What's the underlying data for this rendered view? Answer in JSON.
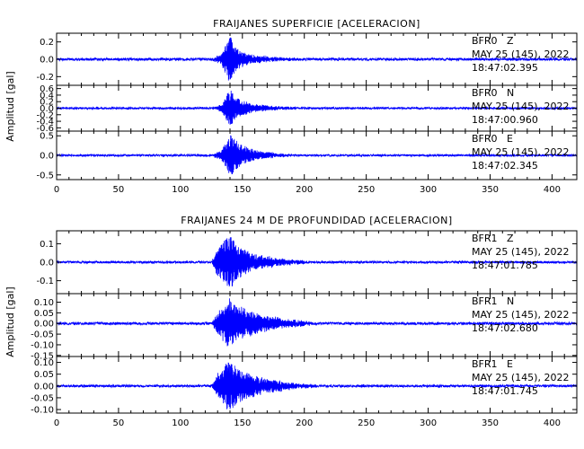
{
  "chart_data": [
    {
      "type": "line",
      "title": "FRAIJANES SUPERFICIE [ACELERACION]",
      "ylabel": "Amplitud [gal]",
      "xlim": [
        0,
        420
      ],
      "x_ticks": [
        "0",
        "50",
        "100",
        "150",
        "200",
        "250",
        "300",
        "350",
        "400"
      ],
      "color": "#0000ff",
      "series": [
        {
          "name": "BFR0 Z",
          "station": "BFR0   Z",
          "date": "MAY 25 (145), 2022",
          "time": "18:47:02.395",
          "ylim": [
            -0.3,
            0.3
          ],
          "y_ticks": [
            {
              "v": -0.2,
              "t": "-0.2"
            },
            {
              "v": 0.0,
              "t": "0.0"
            },
            {
              "v": 0.2,
              "t": "0.2"
            }
          ],
          "noise": 0.015,
          "envelope": [
            [
              0,
              0
            ],
            [
              125,
              0
            ],
            [
              133,
              0.05
            ],
            [
              140,
              0.28
            ],
            [
              145,
              0.12
            ],
            [
              155,
              0.05
            ],
            [
              175,
              0.02
            ],
            [
              195,
              0
            ]
          ],
          "seed": 11
        },
        {
          "name": "BFR0 N",
          "station": "BFR0   N",
          "date": "MAY 25 (145), 2022",
          "time": "18:47:00.960",
          "ylim": [
            -0.7,
            0.7
          ],
          "y_ticks": [
            {
              "v": -0.6,
              "t": "-0.6"
            },
            {
              "v": -0.4,
              "t": "-0.4"
            },
            {
              "v": -0.2,
              "t": "-0.2"
            },
            {
              "v": 0.0,
              "t": "0.0"
            },
            {
              "v": 0.2,
              "t": "0.2"
            },
            {
              "v": 0.4,
              "t": "0.4"
            },
            {
              "v": 0.6,
              "t": "0.6"
            }
          ],
          "noise": 0.03,
          "envelope": [
            [
              0,
              0
            ],
            [
              125,
              0
            ],
            [
              133,
              0.1
            ],
            [
              140,
              0.6
            ],
            [
              146,
              0.3
            ],
            [
              158,
              0.12
            ],
            [
              180,
              0.04
            ],
            [
              200,
              0
            ]
          ],
          "seed": 23
        },
        {
          "name": "BFR0 E",
          "station": "BFR0   E",
          "date": "MAY 25 (145), 2022",
          "time": "18:47:02.345",
          "ylim": [
            -0.62,
            0.62
          ],
          "y_ticks": [
            {
              "v": -0.5,
              "t": "-0.5"
            },
            {
              "v": 0.0,
              "t": "0.0"
            },
            {
              "v": 0.5,
              "t": "0.5"
            }
          ],
          "noise": 0.025,
          "envelope": [
            [
              0,
              0
            ],
            [
              125,
              0
            ],
            [
              133,
              0.12
            ],
            [
              140,
              0.55
            ],
            [
              147,
              0.3
            ],
            [
              160,
              0.12
            ],
            [
              180,
              0.04
            ],
            [
              200,
              0
            ]
          ],
          "seed": 37
        }
      ]
    },
    {
      "type": "line",
      "title": "FRAIJANES 24 M DE PROFUNDIDAD [ACELERACION]",
      "ylabel": "Amplitud [gal]",
      "xlim": [
        0,
        420
      ],
      "x_ticks": [
        "0",
        "50",
        "100",
        "150",
        "200",
        "250",
        "300",
        "350",
        "400"
      ],
      "color": "#0000ff",
      "series": [
        {
          "name": "BFR1 Z",
          "station": "BFR1   Z",
          "date": "MAY 25 (145), 2022",
          "time": "18:47:01.785",
          "ylim": [
            -0.17,
            0.17
          ],
          "y_ticks": [
            {
              "v": -0.1,
              "t": "-0.1"
            },
            {
              "v": 0.0,
              "t": "0.0"
            },
            {
              "v": 0.1,
              "t": "0.1"
            }
          ],
          "noise": 0.006,
          "envelope": [
            [
              0,
              0
            ],
            [
              125,
              0
            ],
            [
              130,
              0.08
            ],
            [
              136,
              0.12
            ],
            [
              140,
              0.15
            ],
            [
              146,
              0.09
            ],
            [
              160,
              0.04
            ],
            [
              185,
              0.015
            ],
            [
              210,
              0
            ]
          ],
          "seed": 51
        },
        {
          "name": "BFR1 N",
          "station": "BFR1   N",
          "date": "MAY 25 (145), 2022",
          "time": "18:47:02.680",
          "ylim": [
            -0.155,
            0.14
          ],
          "y_ticks": [
            {
              "v": -0.15,
              "t": "-0.15"
            },
            {
              "v": -0.1,
              "t": "-0.10"
            },
            {
              "v": -0.05,
              "t": "-0.05"
            },
            {
              "v": 0.0,
              "t": "0.00"
            },
            {
              "v": 0.05,
              "t": "0.05"
            },
            {
              "v": 0.1,
              "t": "0.10"
            }
          ],
          "noise": 0.006,
          "envelope": [
            [
              0,
              0
            ],
            [
              125,
              0
            ],
            [
              130,
              0.05
            ],
            [
              140,
              0.12
            ],
            [
              146,
              0.08
            ],
            [
              165,
              0.04
            ],
            [
              190,
              0.015
            ],
            [
              215,
              0
            ]
          ],
          "seed": 67
        },
        {
          "name": "BFR1 E",
          "station": "BFR1   E",
          "date": "MAY 25 (145), 2022",
          "time": "18:47:01.745",
          "ylim": [
            -0.115,
            0.125
          ],
          "y_ticks": [
            {
              "v": -0.1,
              "t": "-0.10"
            },
            {
              "v": -0.05,
              "t": "-0.05"
            },
            {
              "v": 0.0,
              "t": "0.00"
            },
            {
              "v": 0.05,
              "t": "0.05"
            },
            {
              "v": 0.1,
              "t": "0.10"
            }
          ],
          "noise": 0.005,
          "envelope": [
            [
              0,
              0
            ],
            [
              125,
              0
            ],
            [
              130,
              0.05
            ],
            [
              140,
              0.11
            ],
            [
              147,
              0.07
            ],
            [
              165,
              0.035
            ],
            [
              190,
              0.012
            ],
            [
              215,
              0
            ]
          ],
          "seed": 83
        }
      ]
    }
  ]
}
